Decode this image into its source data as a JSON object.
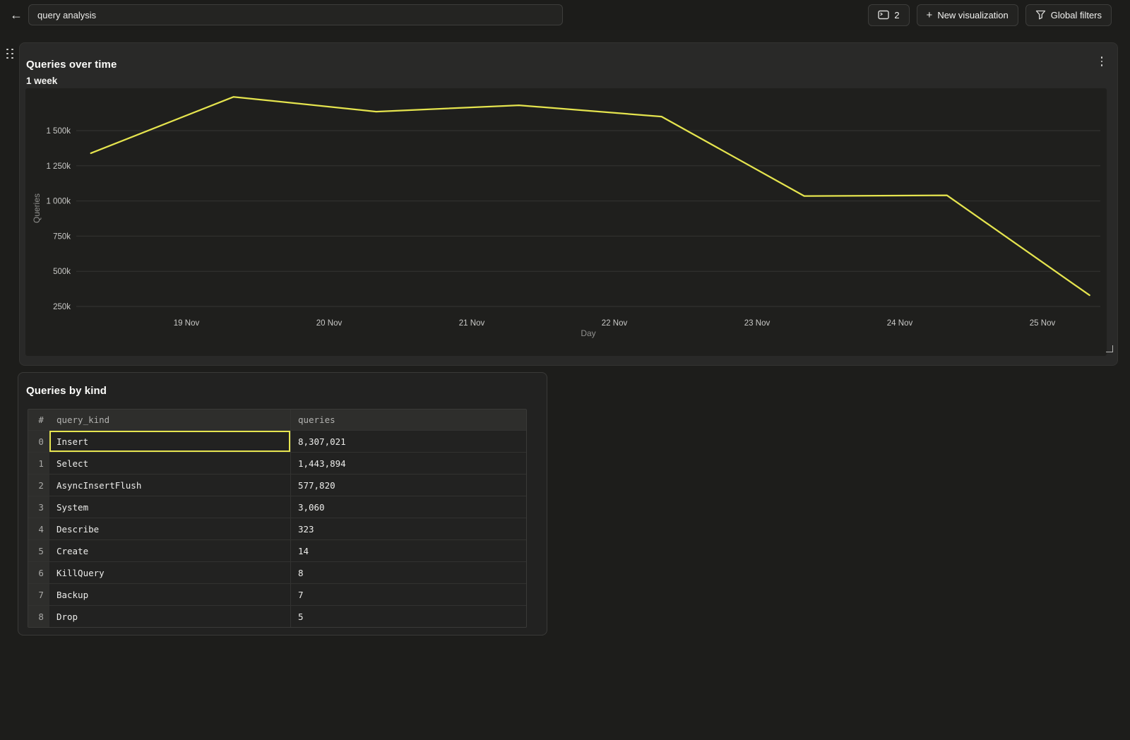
{
  "topbar": {
    "title_value": "query analysis",
    "panel_count": "2",
    "new_visualization_label": "New visualization",
    "global_filters_label": "Global filters"
  },
  "chart_widget": {
    "title": "Queries over time",
    "subtitle": "1 week"
  },
  "chart_data": {
    "type": "line",
    "title": "Queries over time",
    "subtitle": "1 week",
    "xlabel": "Day",
    "ylabel": "Queries",
    "legend": "none",
    "grid": "horizontal",
    "plot_background": "#1f1f1d",
    "gridline_color": "#343432",
    "tick_label_color": "#c9c9c7",
    "axis_title_color": "#8f8f8d",
    "x_ticks": [
      {
        "label": "19 Nov",
        "day": 19
      },
      {
        "label": "20 Nov",
        "day": 20
      },
      {
        "label": "21 Nov",
        "day": 21
      },
      {
        "label": "22 Nov",
        "day": 22
      },
      {
        "label": "23 Nov",
        "day": 23
      },
      {
        "label": "24 Nov",
        "day": 24
      },
      {
        "label": "25 Nov",
        "day": 25
      }
    ],
    "y_ticks": [
      {
        "label": "250k",
        "value": 250000
      },
      {
        "label": "500k",
        "value": 500000
      },
      {
        "label": "750k",
        "value": 750000
      },
      {
        "label": "1 000k",
        "value": 1000000
      },
      {
        "label": "1 250k",
        "value": 1250000
      },
      {
        "label": "1 500k",
        "value": 1500000
      }
    ],
    "series": [
      {
        "name": "Queries",
        "color": "#e5e44e",
        "points": [
          {
            "day": 18.33,
            "queries": 1340000
          },
          {
            "day": 19.33,
            "queries": 1740000
          },
          {
            "day": 20.33,
            "queries": 1635000
          },
          {
            "day": 21.33,
            "queries": 1680000
          },
          {
            "day": 22.33,
            "queries": 1600000
          },
          {
            "day": 23.33,
            "queries": 1035000
          },
          {
            "day": 24.33,
            "queries": 1040000
          },
          {
            "day": 25.33,
            "queries": 330000
          }
        ]
      }
    ]
  },
  "table_widget": {
    "title": "Queries by kind",
    "columns": [
      "#",
      "query_kind",
      "queries"
    ],
    "rows": [
      {
        "index": "0",
        "query_kind": "Insert",
        "queries": "8,307,021"
      },
      {
        "index": "1",
        "query_kind": "Select",
        "queries": "1,443,894"
      },
      {
        "index": "2",
        "query_kind": "AsyncInsertFlush",
        "queries": "577,820"
      },
      {
        "index": "3",
        "query_kind": "System",
        "queries": "3,060"
      },
      {
        "index": "4",
        "query_kind": "Describe",
        "queries": "323"
      },
      {
        "index": "5",
        "query_kind": "Create",
        "queries": "14"
      },
      {
        "index": "6",
        "query_kind": "KillQuery",
        "queries": "8"
      },
      {
        "index": "7",
        "query_kind": "Backup",
        "queries": "7"
      },
      {
        "index": "8",
        "query_kind": "Drop",
        "queries": "5"
      }
    ],
    "selected_cell": {
      "row": 0,
      "column": "query_kind"
    }
  }
}
